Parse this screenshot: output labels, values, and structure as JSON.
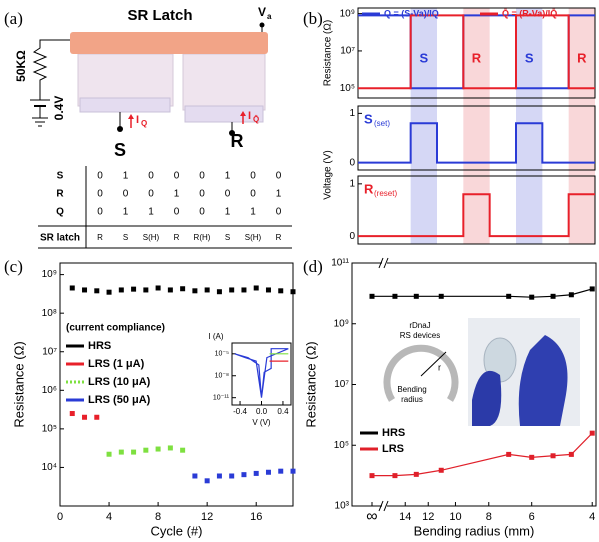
{
  "panel_labels": [
    "(a)",
    "(b)",
    "(c)",
    "(d)"
  ],
  "diagram": {
    "title": "SR Latch",
    "va": "V",
    "va_sub": "a",
    "resistor": "50KΩ",
    "voltage": "0.4V",
    "iq": "I",
    "iq_sub": "Q",
    "iqbar": "I",
    "iqbar_sub": "Q̄",
    "s": "S",
    "r": "R"
  },
  "table": {
    "rows": [
      [
        "S",
        0,
        1,
        0,
        0,
        0,
        1,
        0,
        0
      ],
      [
        "R",
        0,
        0,
        0,
        1,
        0,
        0,
        0,
        1
      ],
      [
        "Q",
        0,
        1,
        1,
        0,
        0,
        1,
        1,
        0
      ],
      [
        "SR latch",
        "R",
        "S",
        "S(H)",
        "R",
        "R(H)",
        "S",
        "S(H)",
        "R"
      ]
    ]
  },
  "chart_data": [
    {
      "type": "line",
      "y_label": "Resistance (Ω)",
      "log_y": true,
      "xlim": [
        0,
        9
      ],
      "ylim": [
        30000,
        2000000000
      ],
      "yticks": [
        {
          "value": 100000,
          "label": "10⁵"
        },
        {
          "value": 10000000,
          "label": "10⁷"
        },
        {
          "value": 1000000000,
          "label": "10⁹"
        }
      ],
      "legend": "top",
      "bands": [
        {
          "x": [
            2,
            3
          ],
          "label": "S",
          "color": "#cbcdf2",
          "label_color": "#2a3bd6"
        },
        {
          "x": [
            4,
            5
          ],
          "label": "R",
          "color": "#f7cdd0",
          "label_color": "#e8202a"
        },
        {
          "x": [
            6,
            7
          ],
          "label": "S",
          "color": "#cbcdf2",
          "label_color": "#2a3bd6"
        },
        {
          "x": [
            8,
            9
          ],
          "label": "R",
          "color": "#f7cdd0",
          "label_color": "#e8202a"
        }
      ],
      "series": [
        {
          "name": "Q = (S-Va)/IQ",
          "color": "#2a3bd6",
          "x": [
            0,
            2,
            2,
            4,
            4,
            6,
            6,
            8,
            8,
            9
          ],
          "values": [
            800000000,
            800000000,
            100000,
            100000,
            800000000,
            800000000,
            100000,
            100000,
            800000000,
            800000000
          ]
        },
        {
          "name": "Q̄ = (R-Va)/IQ̄",
          "color": "#e8202a",
          "x": [
            0,
            2,
            2,
            4,
            4,
            6,
            6,
            8,
            8,
            9
          ],
          "values": [
            100000,
            100000,
            800000000,
            800000000,
            100000,
            100000,
            800000000,
            800000000,
            100000,
            100000
          ]
        }
      ]
    },
    {
      "type": "line",
      "y_label": "Voltage (V)",
      "xlim": [
        0,
        9
      ],
      "ylim": [
        -0.15,
        1.15
      ],
      "yticks": [
        0,
        1
      ],
      "annotation": "S",
      "annotation_sub": "(set)",
      "annotation_color": "#2a3bd6",
      "series": [
        {
          "color": "#2a3bd6",
          "x": [
            0,
            2,
            2,
            3,
            3,
            6,
            6,
            7,
            7,
            9
          ],
          "values": [
            0,
            0,
            0.8,
            0.8,
            0,
            0,
            0.8,
            0.8,
            0,
            0
          ]
        }
      ]
    },
    {
      "type": "line",
      "xlim": [
        0,
        9
      ],
      "ylim": [
        -0.15,
        1.15
      ],
      "yticks": [
        0,
        1
      ],
      "annotation": "R",
      "annotation_sub": "(reset)",
      "annotation_color": "#e8202a",
      "series": [
        {
          "color": "#e8202a",
          "x": [
            0,
            4,
            4,
            5,
            5,
            8,
            8,
            9
          ],
          "values": [
            0,
            0,
            0.8,
            0.8,
            0,
            0,
            0.8,
            0.8
          ]
        }
      ]
    },
    {
      "type": "scatter",
      "x_label": "Cycle (#)",
      "y_label": "Resistance (Ω)",
      "log_y": true,
      "xlim": [
        0,
        19
      ],
      "ylim": [
        1000,
        2000000000
      ],
      "xticks": [
        0,
        4,
        8,
        12,
        16
      ],
      "yticks": [
        {
          "value": 10000,
          "label": "10⁴"
        },
        {
          "value": 100000,
          "label": "10⁵"
        },
        {
          "value": 1000000,
          "label": "10⁶"
        },
        {
          "value": 10000000,
          "label": "10⁷"
        },
        {
          "value": 100000000,
          "label": "10⁸"
        },
        {
          "value": 1000000000,
          "label": "10⁹"
        }
      ],
      "legend": "center-left",
      "legend_title": "(current compliance)",
      "series": [
        {
          "name": "HRS",
          "color": "#000000",
          "x": [
            1,
            2,
            3,
            4,
            5,
            6,
            7,
            8,
            9,
            10,
            11,
            12,
            13,
            14,
            15,
            16,
            17,
            18,
            19
          ],
          "values": [
            450000000,
            400000000,
            380000000,
            350000000,
            400000000,
            420000000,
            400000000,
            450000000,
            400000000,
            430000000,
            380000000,
            400000000,
            360000000,
            400000000,
            400000000,
            450000000,
            400000000,
            380000000,
            360000000
          ]
        },
        {
          "name": "LRS (1 μA)",
          "color": "#e8202a",
          "x": [
            1,
            2,
            3
          ],
          "values": [
            250000,
            200000,
            200000
          ]
        },
        {
          "name": "LRS (10 μA)",
          "color": "#7ee040",
          "x": [
            4,
            5,
            6,
            7,
            8,
            9,
            10
          ],
          "values": [
            22000,
            25000,
            25000,
            28000,
            30000,
            32000,
            28000
          ]
        },
        {
          "name": "LRS (50 μA)",
          "color": "#2a3bd6",
          "x": [
            11,
            12,
            13,
            14,
            15,
            16,
            17,
            18,
            19
          ],
          "values": [
            6000,
            4500,
            6000,
            6000,
            6500,
            7000,
            7500,
            8000,
            8000
          ]
        }
      ]
    },
    {
      "type": "line",
      "x_label": "V (V)",
      "y_label": "I (A)",
      "log_y": true,
      "xlim": [
        -0.55,
        0.55
      ],
      "ylim": [
        1e-12,
        0.0003
      ],
      "xticks": [
        {
          "value": -0.4,
          "label": "-0.4"
        },
        {
          "value": 0,
          "label": "0.0"
        },
        {
          "value": 0.4,
          "label": "0.4"
        }
      ],
      "yticks": [
        {
          "value": 1e-11,
          "label": "10⁻¹¹"
        },
        {
          "value": 1e-08,
          "label": "10⁻⁸"
        },
        {
          "value": 1e-05,
          "label": "10⁻⁵"
        }
      ],
      "series": [
        {
          "color": "#2a3bd6",
          "x": [
            -0.5,
            -0.25,
            -0.05,
            0,
            0.05,
            0.18,
            0.18,
            0.5,
            0.1,
            0,
            -0.1,
            -0.3,
            -0.5
          ],
          "values": [
            1e-05,
            3e-06,
            3e-07,
            1e-11,
            3e-08,
            1e-07,
            5e-05,
            5e-05,
            3e-06,
            1e-11,
            1e-06,
            3e-06,
            1e-05
          ]
        },
        {
          "color": "#7ee040",
          "x": [
            0.15,
            0.5
          ],
          "values": [
            1e-05,
            1e-05
          ]
        },
        {
          "color": "#e8202a",
          "x": [
            0.15,
            0.5
          ],
          "values": [
            1e-06,
            1e-06
          ]
        }
      ]
    },
    {
      "type": "line",
      "markers": true,
      "x_label": "Bending radius (mm)",
      "y_label": "Resistance (Ω)",
      "log_x": true,
      "log_y": true,
      "xlim": [
        20,
        3.9
      ],
      "ylim": [
        1000,
        100000000000
      ],
      "xticks": [
        "∞",
        14,
        12,
        10,
        8,
        6,
        4
      ],
      "yticks": [
        {
          "value": 1000,
          "label": "10³"
        },
        {
          "value": 100000,
          "label": "10⁵"
        },
        {
          "value": 10000000,
          "label": "10⁷"
        },
        {
          "value": 1000000000,
          "label": "10⁹"
        },
        {
          "value": 100000000000,
          "label": "10¹¹"
        }
      ],
      "legend": "lower-left",
      "device_label": [
        "rDnaJ",
        "RS devices"
      ],
      "radius_label": "r",
      "bend_label": [
        "Bending",
        "radius"
      ],
      "series": [
        {
          "name": "HRS",
          "color": "#000000",
          "x": [
            "∞",
            15,
            13,
            11,
            7,
            6,
            5.2,
            4.6,
            4
          ],
          "values": [
            8000000000,
            8000000000,
            8000000000,
            8000000000,
            8000000000,
            7500000000,
            8000000000,
            9000000000,
            14000000000
          ]
        },
        {
          "name": "LRS",
          "color": "#e0202a",
          "x": [
            "∞",
            15,
            13,
            11,
            7,
            6,
            5.2,
            4.6,
            4
          ],
          "values": [
            10000,
            10000,
            11000,
            15000,
            50000,
            40000,
            45000,
            50000,
            250000
          ]
        }
      ]
    }
  ]
}
